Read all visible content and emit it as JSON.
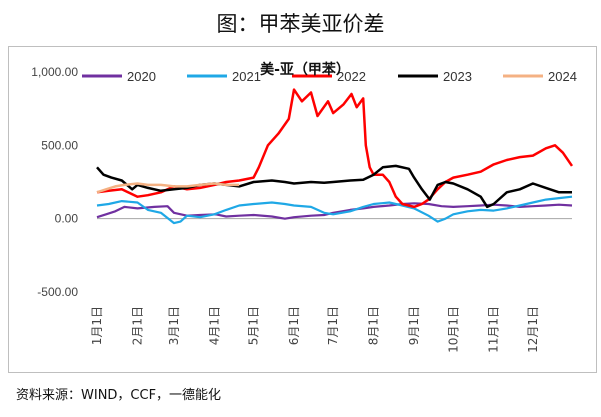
{
  "caption": "图：甲苯美亚价差",
  "source": "资料来源：WIND，CCF，一德能化",
  "colors": {
    "2020": "#7030a0",
    "2021": "#1fa8e6",
    "2022": "#ff0000",
    "2023": "#000000",
    "2024": "#f4b183",
    "zero_line": "#a6a6a6",
    "frame": "#bfbfbf"
  },
  "chart_data": {
    "type": "line",
    "title": "美-亚（甲苯）",
    "xlabel": "",
    "ylabel": "",
    "x_ticks": [
      "1月1日",
      "2月1日",
      "3月1日",
      "4月1日",
      "5月1日",
      "6月1日",
      "7月1日",
      "8月1日",
      "9月1日",
      "10月1日",
      "11月1日",
      "12月1日"
    ],
    "y_ticks": [
      "1,000.00",
      "500.00",
      "0.00",
      "-500.00"
    ],
    "ylim": [
      -500,
      1000
    ],
    "x_unit": "day of year",
    "xlim": [
      1,
      365
    ],
    "grid": false,
    "legend_position": "top",
    "series": [
      {
        "name": "2020",
        "points": [
          [
            1,
            10
          ],
          [
            8,
            30
          ],
          [
            15,
            50
          ],
          [
            22,
            80
          ],
          [
            32,
            70
          ],
          [
            45,
            80
          ],
          [
            55,
            85
          ],
          [
            60,
            40
          ],
          [
            70,
            20
          ],
          [
            80,
            25
          ],
          [
            92,
            30
          ],
          [
            100,
            15
          ],
          [
            110,
            20
          ],
          [
            121,
            25
          ],
          [
            135,
            15
          ],
          [
            145,
            0
          ],
          [
            152,
            10
          ],
          [
            165,
            20
          ],
          [
            175,
            25
          ],
          [
            182,
            40
          ],
          [
            195,
            60
          ],
          [
            205,
            70
          ],
          [
            213,
            80
          ],
          [
            225,
            90
          ],
          [
            235,
            100
          ],
          [
            244,
            105
          ],
          [
            255,
            100
          ],
          [
            265,
            85
          ],
          [
            274,
            80
          ],
          [
            285,
            85
          ],
          [
            295,
            90
          ],
          [
            305,
            95
          ],
          [
            315,
            90
          ],
          [
            325,
            80
          ],
          [
            335,
            85
          ],
          [
            345,
            90
          ],
          [
            355,
            95
          ],
          [
            365,
            90
          ]
        ]
      },
      {
        "name": "2021",
        "points": [
          [
            1,
            90
          ],
          [
            10,
            100
          ],
          [
            20,
            120
          ],
          [
            32,
            110
          ],
          [
            40,
            60
          ],
          [
            50,
            40
          ],
          [
            60,
            -30
          ],
          [
            65,
            -20
          ],
          [
            70,
            20
          ],
          [
            80,
            10
          ],
          [
            91,
            30
          ],
          [
            100,
            60
          ],
          [
            110,
            90
          ],
          [
            121,
            100
          ],
          [
            135,
            110
          ],
          [
            145,
            100
          ],
          [
            152,
            90
          ],
          [
            165,
            80
          ],
          [
            175,
            40
          ],
          [
            182,
            30
          ],
          [
            195,
            50
          ],
          [
            205,
            80
          ],
          [
            213,
            100
          ],
          [
            225,
            110
          ],
          [
            235,
            90
          ],
          [
            244,
            70
          ],
          [
            255,
            20
          ],
          [
            262,
            -20
          ],
          [
            268,
            0
          ],
          [
            274,
            30
          ],
          [
            285,
            50
          ],
          [
            295,
            60
          ],
          [
            305,
            55
          ],
          [
            315,
            70
          ],
          [
            325,
            90
          ],
          [
            335,
            110
          ],
          [
            345,
            130
          ],
          [
            355,
            140
          ],
          [
            365,
            150
          ]
        ]
      },
      {
        "name": "2022",
        "points": [
          [
            1,
            180
          ],
          [
            10,
            190
          ],
          [
            20,
            200
          ],
          [
            32,
            150
          ],
          [
            40,
            160
          ],
          [
            50,
            180
          ],
          [
            60,
            220
          ],
          [
            70,
            200
          ],
          [
            80,
            210
          ],
          [
            91,
            230
          ],
          [
            100,
            250
          ],
          [
            110,
            260
          ],
          [
            121,
            280
          ],
          [
            125,
            350
          ],
          [
            132,
            500
          ],
          [
            140,
            580
          ],
          [
            148,
            680
          ],
          [
            152,
            880
          ],
          [
            158,
            800
          ],
          [
            165,
            860
          ],
          [
            170,
            700
          ],
          [
            178,
            800
          ],
          [
            182,
            720
          ],
          [
            190,
            780
          ],
          [
            196,
            850
          ],
          [
            200,
            760
          ],
          [
            205,
            820
          ],
          [
            207,
            500
          ],
          [
            210,
            350
          ],
          [
            213,
            300
          ],
          [
            220,
            300
          ],
          [
            225,
            250
          ],
          [
            230,
            150
          ],
          [
            235,
            100
          ],
          [
            244,
            80
          ],
          [
            250,
            100
          ],
          [
            255,
            130
          ],
          [
            262,
            200
          ],
          [
            268,
            250
          ],
          [
            274,
            280
          ],
          [
            285,
            300
          ],
          [
            295,
            320
          ],
          [
            305,
            370
          ],
          [
            315,
            400
          ],
          [
            325,
            420
          ],
          [
            335,
            430
          ],
          [
            345,
            480
          ],
          [
            352,
            500
          ],
          [
            358,
            450
          ],
          [
            365,
            360
          ]
        ]
      },
      {
        "name": "2023",
        "points": [
          [
            1,
            350
          ],
          [
            6,
            300
          ],
          [
            12,
            280
          ],
          [
            20,
            260
          ],
          [
            28,
            200
          ],
          [
            32,
            230
          ],
          [
            40,
            210
          ],
          [
            50,
            190
          ],
          [
            60,
            200
          ],
          [
            70,
            210
          ],
          [
            80,
            230
          ],
          [
            91,
            240
          ],
          [
            100,
            230
          ],
          [
            110,
            220
          ],
          [
            121,
            250
          ],
          [
            135,
            260
          ],
          [
            145,
            250
          ],
          [
            152,
            240
          ],
          [
            165,
            250
          ],
          [
            175,
            245
          ],
          [
            182,
            250
          ],
          [
            195,
            260
          ],
          [
            205,
            265
          ],
          [
            213,
            300
          ],
          [
            220,
            350
          ],
          [
            230,
            360
          ],
          [
            240,
            340
          ],
          [
            244,
            280
          ],
          [
            250,
            200
          ],
          [
            256,
            130
          ],
          [
            262,
            230
          ],
          [
            268,
            250
          ],
          [
            274,
            240
          ],
          [
            285,
            200
          ],
          [
            295,
            150
          ],
          [
            300,
            80
          ],
          [
            305,
            100
          ],
          [
            315,
            180
          ],
          [
            325,
            200
          ],
          [
            335,
            240
          ],
          [
            345,
            210
          ],
          [
            355,
            180
          ],
          [
            365,
            180
          ]
        ]
      },
      {
        "name": "2024",
        "points": [
          [
            1,
            180
          ],
          [
            8,
            200
          ],
          [
            15,
            220
          ],
          [
            22,
            230
          ],
          [
            32,
            240
          ],
          [
            40,
            230
          ],
          [
            50,
            230
          ],
          [
            60,
            220
          ],
          [
            70,
            220
          ],
          [
            80,
            230
          ],
          [
            91,
            240
          ],
          [
            100,
            230
          ],
          [
            110,
            230
          ]
        ]
      }
    ]
  }
}
